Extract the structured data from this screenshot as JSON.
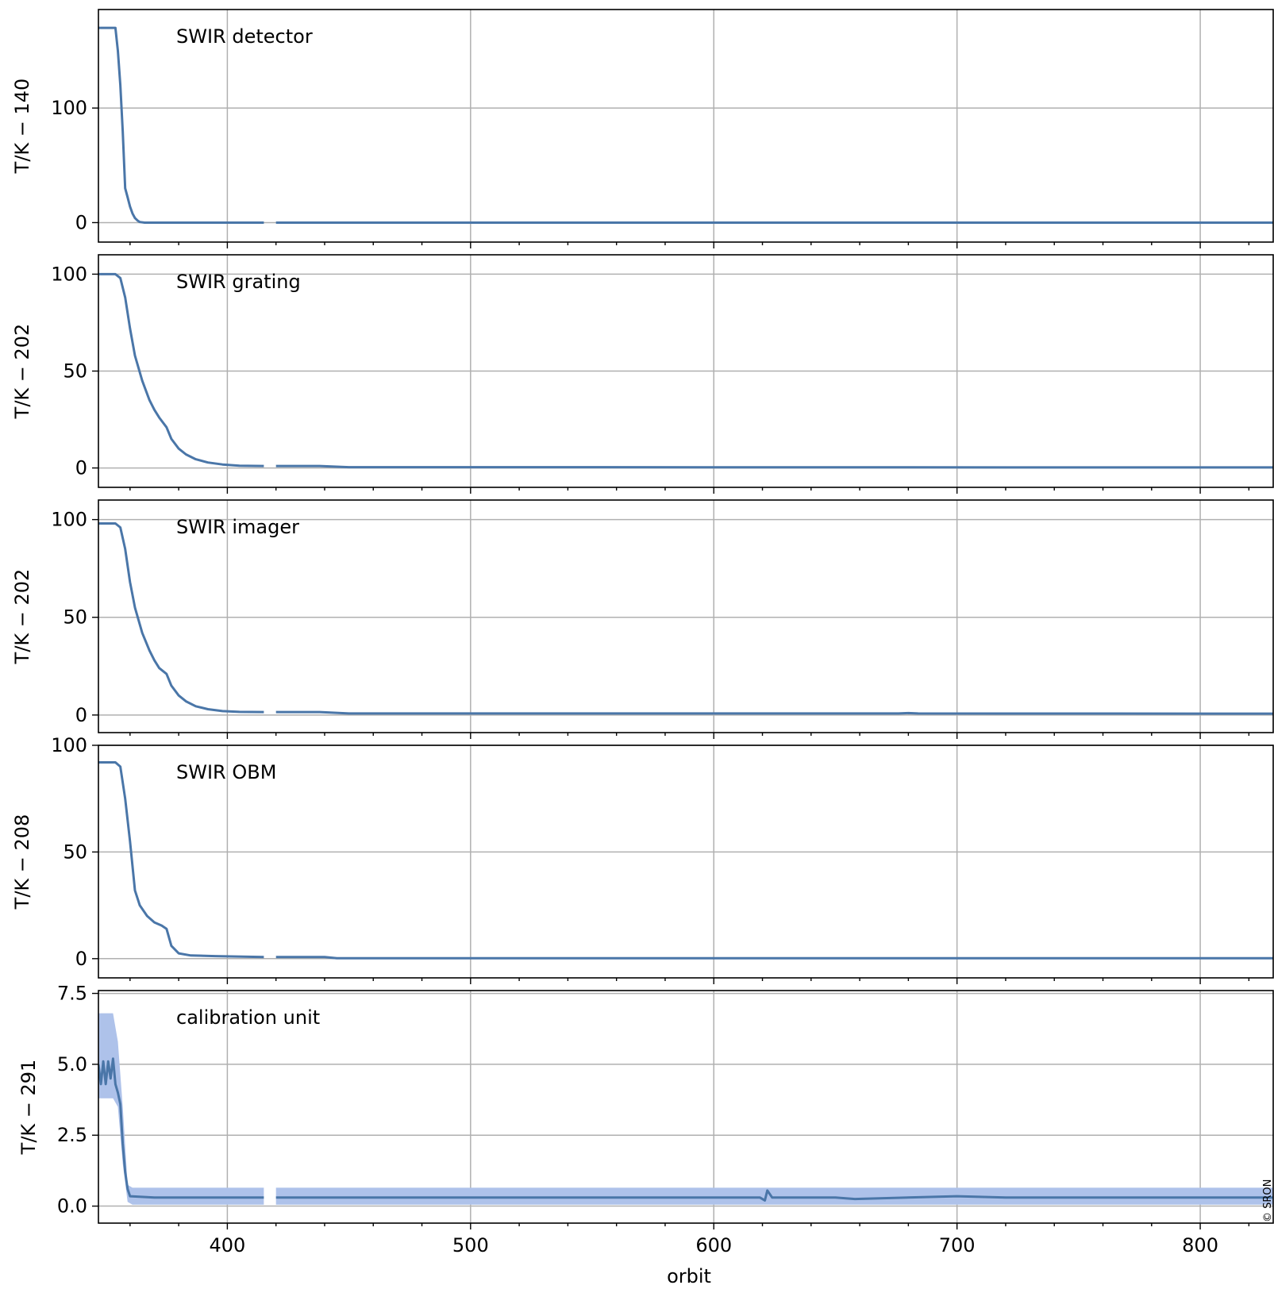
{
  "colors": {
    "line": "#4a76a8",
    "band": "#aec2ea",
    "grid": "#b0b0b0",
    "axis": "#000000"
  },
  "xaxis": {
    "label": "orbit",
    "range": [
      347,
      830
    ],
    "ticks": [
      400,
      500,
      600,
      700,
      800
    ]
  },
  "credit": "© SRON",
  "chart_data": [
    {
      "type": "line",
      "label": "SWIR detector",
      "ylabel": "T/K − 140",
      "ylim": [
        -17,
        186
      ],
      "yticks": [
        0,
        100
      ],
      "ytick_labels": [
        "0",
        "100"
      ],
      "gaps": [
        [
          415,
          420
        ]
      ],
      "x": [
        347,
        354,
        355,
        356,
        357,
        358,
        359,
        360,
        361,
        362,
        363,
        364,
        366,
        370,
        400,
        415,
        420,
        830
      ],
      "y": [
        170,
        170,
        150,
        120,
        80,
        30,
        22,
        14,
        8,
        4,
        2,
        0.5,
        0,
        0,
        0,
        0,
        0,
        0
      ]
    },
    {
      "type": "line",
      "label": "SWIR grating",
      "ylabel": "T/K − 202",
      "ylim": [
        -10,
        110
      ],
      "yticks": [
        0,
        50,
        100
      ],
      "ytick_labels": [
        "0",
        "50",
        "100"
      ],
      "gaps": [
        [
          415,
          420
        ]
      ],
      "x": [
        347,
        354,
        356,
        358,
        360,
        362,
        365,
        368,
        370,
        372,
        375,
        377,
        380,
        383,
        387,
        392,
        398,
        405,
        415,
        420,
        438,
        450,
        830
      ],
      "y": [
        100,
        100,
        98,
        88,
        72,
        58,
        45,
        35,
        30,
        26,
        21,
        15,
        10,
        7,
        4.5,
        2.8,
        1.8,
        1.2,
        1,
        1,
        1,
        0.4,
        0.3
      ]
    },
    {
      "type": "line",
      "label": "SWIR imager",
      "ylabel": "T/K − 202",
      "ylim": [
        -9,
        110
      ],
      "yticks": [
        0,
        50,
        100
      ],
      "ytick_labels": [
        "0",
        "50",
        "100"
      ],
      "gaps": [
        [
          415,
          420
        ]
      ],
      "x": [
        347,
        354,
        356,
        358,
        360,
        362,
        365,
        368,
        370,
        372,
        375,
        377,
        380,
        383,
        387,
        392,
        398,
        405,
        415,
        420,
        438,
        450,
        676,
        680,
        684,
        830
      ],
      "y": [
        98,
        98,
        96,
        85,
        68,
        55,
        42,
        33,
        28,
        24,
        21,
        15,
        10,
        7,
        4.5,
        3,
        2,
        1.6,
        1.5,
        1.5,
        1.5,
        0.8,
        0.8,
        1,
        0.8,
        0.7
      ]
    },
    {
      "type": "line",
      "label": "SWIR OBM",
      "ylabel": "T/K − 208",
      "ylim": [
        -9,
        100
      ],
      "yticks": [
        0,
        50,
        100
      ],
      "ytick_labels": [
        "0",
        "50",
        "100"
      ],
      "gaps": [
        [
          415,
          420
        ]
      ],
      "x": [
        347,
        354,
        356,
        358,
        360,
        362,
        364,
        367,
        370,
        373,
        375,
        377,
        380,
        385,
        395,
        415,
        420,
        440,
        445,
        830
      ],
      "y": [
        92,
        92,
        90,
        75,
        55,
        32,
        25,
        20,
        17,
        15.5,
        14,
        6,
        2.5,
        1.5,
        1.2,
        0.8,
        0.8,
        0.8,
        0.2,
        0.2
      ]
    },
    {
      "type": "line",
      "label": "calibration unit",
      "ylabel": "T/K − 291",
      "ylim": [
        -0.6,
        7.6
      ],
      "yticks": [
        0,
        2.5,
        5,
        7.5
      ],
      "ytick_labels": [
        "0.0",
        "2.5",
        "5.0",
        "7.5"
      ],
      "gaps": [
        [
          415,
          420
        ]
      ],
      "x": [
        347,
        348,
        349,
        350,
        351,
        352,
        353,
        354,
        355,
        356,
        357,
        358,
        359,
        360,
        370,
        400,
        415,
        420,
        450,
        500,
        550,
        600,
        619,
        621,
        622,
        624,
        650,
        658,
        700,
        720,
        750,
        800,
        830
      ],
      "y": [
        5,
        4.3,
        5.1,
        4.3,
        5.1,
        4.5,
        5.2,
        4.3,
        4,
        3.6,
        2.2,
        1.2,
        0.6,
        0.35,
        0.3,
        0.3,
        0.3,
        0.3,
        0.3,
        0.3,
        0.3,
        0.3,
        0.3,
        0.2,
        0.55,
        0.3,
        0.3,
        0.25,
        0.35,
        0.3,
        0.3,
        0.3,
        0.3
      ],
      "band_x": [
        347,
        349,
        351,
        353,
        355,
        357,
        359,
        361,
        415,
        420,
        830
      ],
      "band_lo": [
        3.8,
        3.8,
        3.8,
        3.8,
        3.5,
        1.5,
        0.15,
        0.05,
        0.05,
        0.05,
        0.05
      ],
      "band_hi": [
        6.8,
        6.8,
        6.8,
        6.8,
        5.8,
        3.5,
        0.75,
        0.65,
        0.65,
        0.65,
        0.65
      ]
    }
  ]
}
